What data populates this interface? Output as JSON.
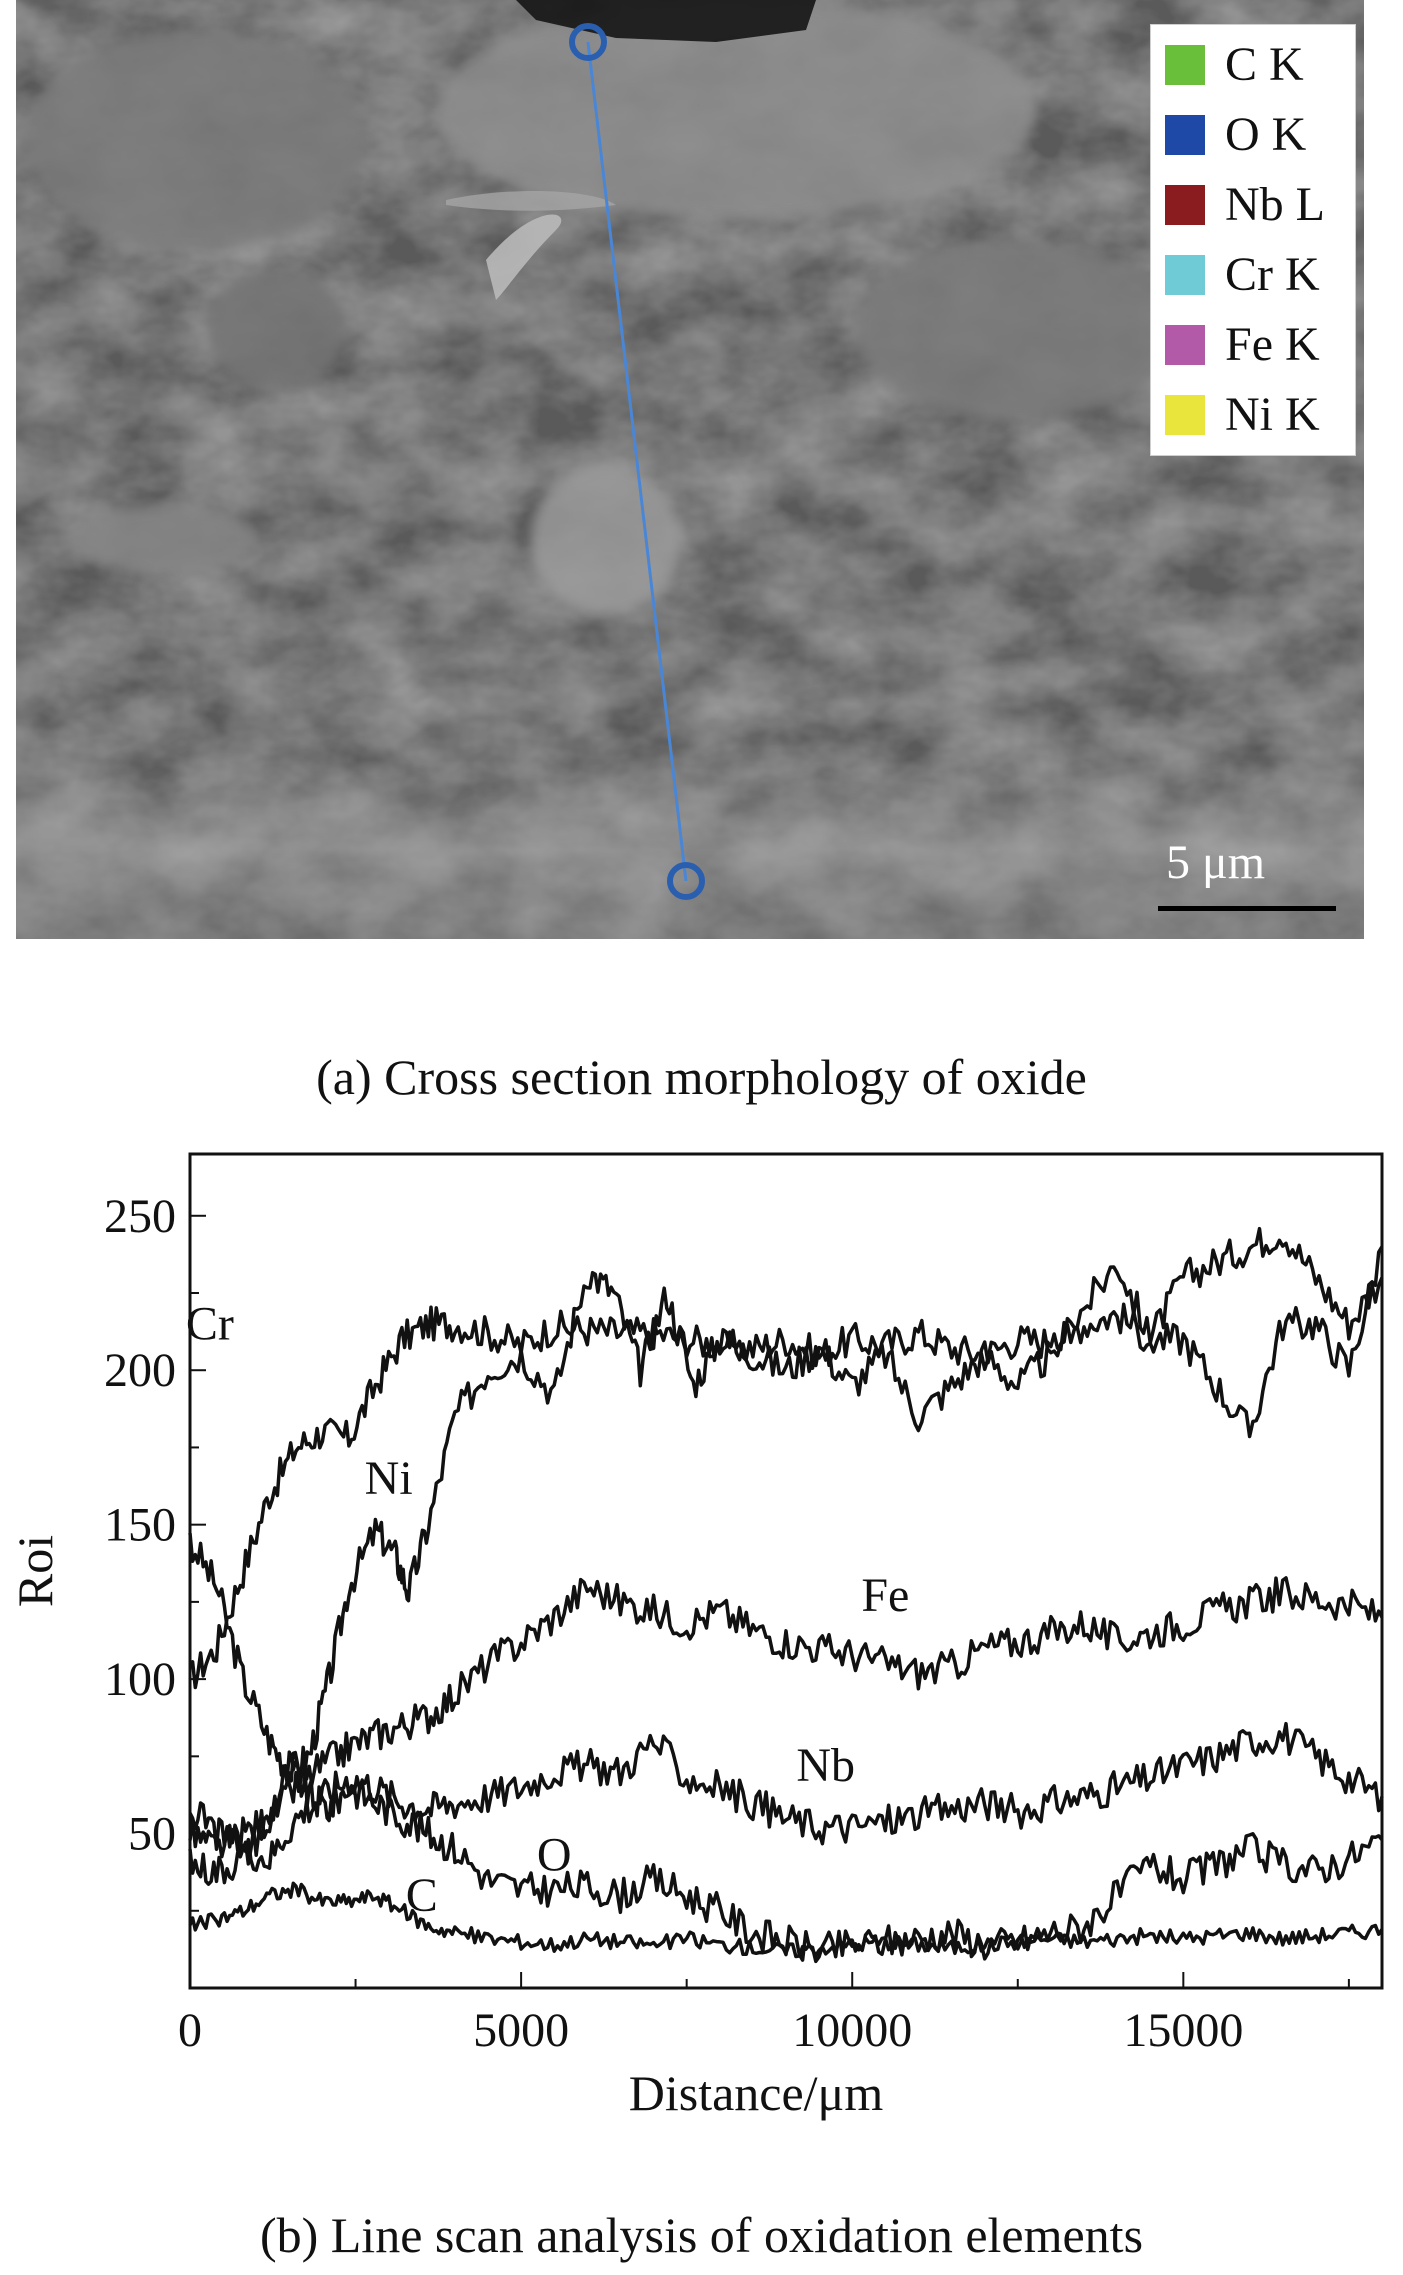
{
  "panel_a": {
    "caption": "(a) Cross section morphology of oxide",
    "legend": [
      {
        "label": "C K",
        "color": "#6abf3a"
      },
      {
        "label": "O K",
        "color": "#1f49a6"
      },
      {
        "label": "Nb L",
        "color": "#8a1c1f"
      },
      {
        "label": "Cr K",
        "color": "#6fcbd6"
      },
      {
        "label": "Fe K",
        "color": "#b25aa8"
      },
      {
        "label": "Ni K",
        "color": "#e9e53c"
      }
    ],
    "scale_bar_label": "5 μm",
    "scan_line_color": "#4a86d6"
  },
  "panel_b": {
    "caption": "(b) Line scan analysis of oxidation elements"
  },
  "chart_data": {
    "type": "line",
    "xlabel": "Distance/μm",
    "ylabel": "Roi",
    "xlim": [
      0,
      18000
    ],
    "ylim": [
      0,
      270
    ],
    "xticks": [
      0,
      5000,
      10000,
      15000
    ],
    "yticks": [
      50,
      100,
      150,
      200,
      250
    ],
    "grid": false,
    "line_color": "#111111",
    "series": [
      {
        "name": "Cr",
        "label_at": [
          300,
          210
        ],
        "x": [
          0,
          400,
          800,
          1200,
          1600,
          2000,
          2400,
          2800,
          3200,
          3600,
          4000,
          4500,
          5000,
          5500,
          6000,
          6500,
          7000,
          7500,
          8000,
          8500,
          9000,
          9500,
          10000,
          10500,
          11000,
          11500,
          12000,
          12500,
          13000,
          13500,
          14000,
          14500,
          15000,
          15500,
          16000,
          16500,
          17000,
          17500,
          18000
        ],
        "y": [
          100,
          110,
          135,
          160,
          175,
          180,
          178,
          195,
          210,
          215,
          215,
          212,
          208,
          214,
          213,
          212,
          212,
          210,
          208,
          207,
          210,
          205,
          210,
          208,
          212,
          207,
          205,
          210,
          209,
          215,
          218,
          210,
          230,
          235,
          240,
          245,
          230,
          215,
          230
        ]
      },
      {
        "name": "Ni",
        "label_at": [
          3000,
          160
        ],
        "x": [
          0,
          400,
          800,
          1200,
          1500,
          1800,
          2100,
          2400,
          2800,
          3100,
          3300,
          3600,
          4000,
          4500,
          5000,
          5500,
          6000,
          6400,
          6800,
          7200,
          7600,
          8000,
          8500,
          9000,
          9500,
          10000,
          10500,
          11000,
          11500,
          12000,
          12500,
          13000,
          13500,
          14000,
          14500,
          15000,
          15500,
          16000,
          16500,
          17000,
          17500,
          18000
        ],
        "y": [
          145,
          130,
          100,
          80,
          70,
          75,
          100,
          130,
          148,
          140,
          128,
          150,
          185,
          200,
          205,
          192,
          232,
          225,
          200,
          225,
          195,
          210,
          205,
          200,
          207,
          195,
          205,
          185,
          195,
          205,
          195,
          205,
          220,
          235,
          210,
          210,
          195,
          180,
          215,
          215,
          200,
          240
        ]
      },
      {
        "name": "Fe",
        "label_at": [
          10500,
          122
        ],
        "x": [
          0,
          400,
          800,
          1200,
          1600,
          2000,
          2400,
          2800,
          3200,
          3600,
          4000,
          4500,
          5000,
          5500,
          6000,
          6500,
          7000,
          7500,
          8000,
          8500,
          9000,
          9500,
          10000,
          10500,
          11000,
          11500,
          12000,
          12500,
          13000,
          13500,
          14000,
          14500,
          15000,
          15500,
          16000,
          16500,
          17000,
          17500,
          18000
        ],
        "y": [
          50,
          45,
          50,
          55,
          65,
          72,
          78,
          82,
          85,
          88,
          95,
          105,
          112,
          120,
          130,
          125,
          122,
          118,
          122,
          116,
          112,
          110,
          108,
          105,
          102,
          104,
          110,
          112,
          115,
          118,
          112,
          115,
          118,
          122,
          125,
          128,
          126,
          124,
          120
        ]
      },
      {
        "name": "Nb",
        "label_at": [
          9600,
          67
        ],
        "x": [
          0,
          400,
          800,
          1200,
          1600,
          2000,
          2400,
          2800,
          3200,
          3600,
          4000,
          4500,
          5000,
          5500,
          6000,
          6500,
          7000,
          7500,
          8000,
          8500,
          9000,
          9500,
          10000,
          10500,
          11000,
          11500,
          12000,
          12500,
          13000,
          13500,
          14000,
          14500,
          15000,
          15500,
          16000,
          16500,
          17000,
          17500,
          18000
        ],
        "y": [
          58,
          50,
          45,
          42,
          55,
          62,
          68,
          65,
          60,
          58,
          60,
          62,
          65,
          70,
          72,
          70,
          80,
          68,
          65,
          60,
          55,
          52,
          52,
          54,
          56,
          58,
          60,
          57,
          60,
          62,
          65,
          68,
          72,
          75,
          80,
          82,
          75,
          68,
          62
        ]
      },
      {
        "name": "O",
        "label_at": [
          5500,
          38
        ],
        "x": [
          0,
          400,
          800,
          1200,
          1500,
          1800,
          2100,
          2400,
          2800,
          3200,
          3600,
          4000,
          4500,
          5000,
          5500,
          6000,
          6500,
          7000,
          7500,
          8000,
          8500,
          9000,
          9500,
          10000,
          10500,
          11000,
          11500,
          12000,
          12500,
          13000,
          13500,
          14000,
          14500,
          15000,
          15500,
          16000,
          16500,
          17000,
          17500,
          18000
        ],
        "y": [
          40,
          38,
          42,
          55,
          72,
          62,
          58,
          65,
          60,
          55,
          50,
          45,
          35,
          32,
          32,
          33,
          30,
          35,
          30,
          25,
          18,
          15,
          12,
          14,
          15,
          16,
          18,
          14,
          15,
          18,
          20,
          30,
          40,
          35,
          40,
          45,
          40,
          38,
          42,
          48
        ]
      },
      {
        "name": "C",
        "label_at": [
          3500,
          25
        ],
        "x": [
          0,
          400,
          800,
          1200,
          1600,
          2000,
          2400,
          2800,
          3200,
          3600,
          4000,
          4500,
          5000,
          5500,
          6000,
          6500,
          7000,
          7500,
          8000,
          8500,
          9000,
          9500,
          10000,
          10500,
          11000,
          11500,
          12000,
          12500,
          13000,
          13500,
          14000,
          14500,
          15000,
          15500,
          16000,
          16500,
          17000,
          17500,
          18000
        ],
        "y": [
          20,
          22,
          25,
          30,
          32,
          28,
          28,
          30,
          25,
          20,
          18,
          16,
          15,
          14,
          16,
          15,
          14,
          16,
          14,
          13,
          12,
          13,
          14,
          15,
          14,
          13,
          14,
          15,
          16,
          15,
          16,
          17,
          16,
          17,
          18,
          16,
          17,
          18,
          19
        ]
      }
    ]
  }
}
